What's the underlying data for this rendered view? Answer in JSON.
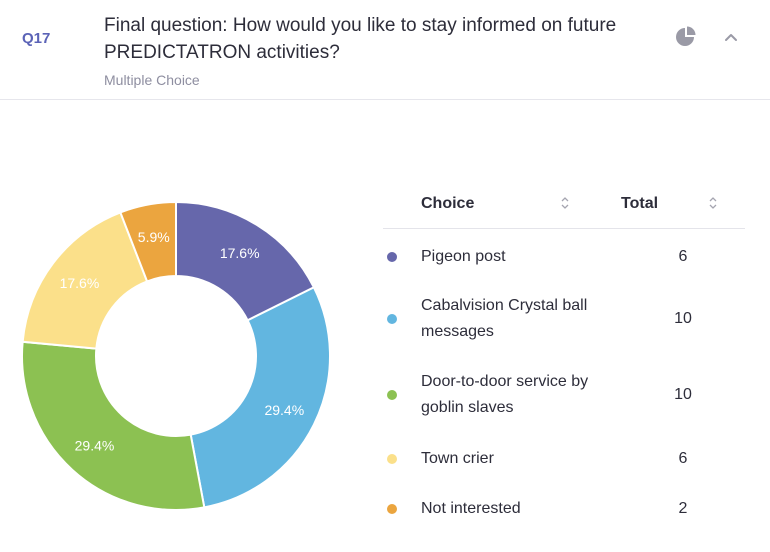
{
  "question": {
    "number": "Q17",
    "title": "Final question: How would you like to stay informed on future PREDICTATRON activities?",
    "type": "Multiple Choice"
  },
  "icons": {
    "chart_toggle": "pie-chart-icon",
    "collapse": "chevron-up-icon"
  },
  "table": {
    "header_choice": "Choice",
    "header_total": "Total"
  },
  "chart_data": {
    "type": "pie",
    "donut": true,
    "categories": [
      "Pigeon post",
      "Cabalvision Crystal ball messages",
      "Door-to-door service by goblin slaves",
      "Town crier",
      "Not interested"
    ],
    "values": [
      6,
      10,
      10,
      6,
      2
    ],
    "percent_labels": [
      "17.6%",
      "29.4%",
      "29.4%",
      "17.6%",
      "5.9%"
    ],
    "colors": [
      "#6667ab",
      "#62b6e0",
      "#8cc152",
      "#fbe08a",
      "#eba53f"
    ]
  },
  "rows": [
    {
      "label": "Pigeon post",
      "total": "6"
    },
    {
      "label": "Cabalvision Crystal ball messages",
      "total": "10"
    },
    {
      "label": "Door-to-door service by goblin slaves",
      "total": "10"
    },
    {
      "label": "Town crier",
      "total": "6"
    },
    {
      "label": "Not interested",
      "total": "2"
    }
  ]
}
